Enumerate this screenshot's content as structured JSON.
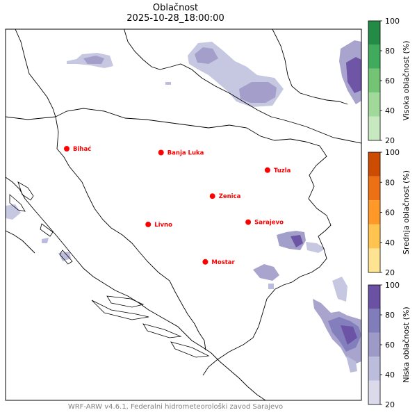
{
  "title": "Oblačnost",
  "subtitle": "2025-10-28_18:00:00",
  "footer": "WRF-ARW v4.6.1, Federalni hidrometeorološki zavod Sarajevo",
  "cities": [
    {
      "name": "Bihać",
      "lon": 15.87,
      "lat": 44.82
    },
    {
      "name": "Banja Luka",
      "lon": 17.19,
      "lat": 44.77
    },
    {
      "name": "Tuzla",
      "lon": 18.68,
      "lat": 44.54
    },
    {
      "name": "Zenica",
      "lon": 17.91,
      "lat": 44.2
    },
    {
      "name": "Livno",
      "lon": 17.01,
      "lat": 43.83
    },
    {
      "name": "Sarajevo",
      "lon": 18.41,
      "lat": 43.86
    },
    {
      "name": "Mostar",
      "lon": 17.81,
      "lat": 43.34
    }
  ],
  "city_marker_color": "#ff0000",
  "colorbars": [
    {
      "label": "Visoka oblačnost (%)",
      "ticks": [
        "100",
        "80",
        "60",
        "40",
        "20"
      ],
      "colors": [
        "#c7e9c0",
        "#a1d99b",
        "#74c476",
        "#41ab5d",
        "#238b45"
      ]
    },
    {
      "label": "Srednja oblačnost (%)",
      "ticks": [
        "100",
        "80",
        "60",
        "40",
        "20"
      ],
      "colors": [
        "#fee391",
        "#fec44f",
        "#fe9929",
        "#ec7014",
        "#cc4c02"
      ]
    },
    {
      "label": "Niska oblačnost (%)",
      "ticks": [
        "100",
        "80",
        "60",
        "40",
        "20"
      ],
      "colors": [
        "#dadaeb",
        "#bcbddc",
        "#9e9ac8",
        "#807dba",
        "#6a51a3"
      ]
    }
  ]
}
